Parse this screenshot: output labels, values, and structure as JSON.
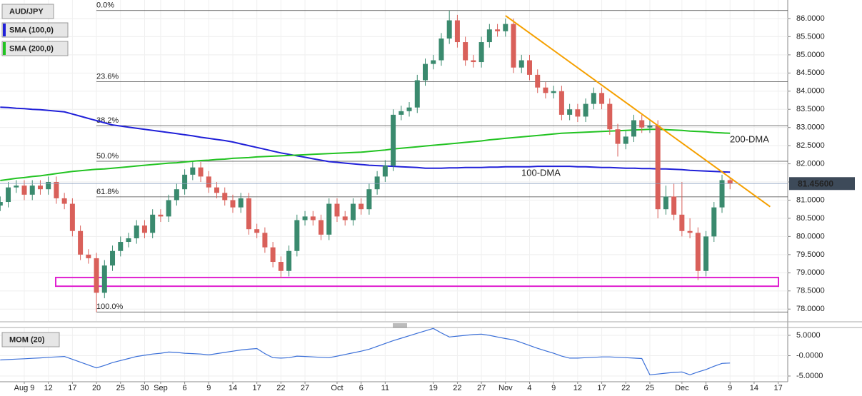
{
  "chart_data": [
    {
      "type": "candlestick",
      "title": "AUD/JPY",
      "categories": [
        null,
        null,
        null,
        "Aug 9",
        null,
        null,
        "12",
        null,
        null,
        "17",
        null,
        null,
        "20",
        null,
        null,
        "25",
        null,
        null,
        "30",
        null,
        "Sep",
        null,
        null,
        "6",
        null,
        null,
        "9",
        null,
        null,
        "14",
        null,
        null,
        "17",
        null,
        null,
        "22",
        null,
        null,
        "27",
        null,
        null,
        null,
        "Oct",
        null,
        null,
        "6",
        null,
        null,
        "11",
        null,
        null,
        null,
        null,
        null,
        "19",
        null,
        null,
        "22",
        null,
        null,
        "27",
        null,
        null,
        "Nov",
        null,
        null,
        "4",
        null,
        null,
        "9",
        null,
        null,
        "12",
        null,
        null,
        "17",
        null,
        null,
        "22",
        null,
        null,
        "25",
        null,
        null,
        null,
        "Dec",
        null,
        null,
        "6",
        null,
        null,
        "9",
        null,
        null,
        "14",
        null,
        null,
        "17"
      ],
      "candles": {
        "name": "AUD/JPY",
        "up_color": "#3a8a6e",
        "down_color": "#d9605a",
        "open": [
          80.85,
          80.95,
          81.35,
          81.4,
          81.15,
          81.4,
          81.3,
          81.5,
          81.05,
          80.9,
          80.15,
          79.5,
          79.4,
          78.45,
          79.2,
          79.6,
          79.85,
          79.95,
          80.3,
          80.1,
          80.6,
          80.55,
          81.0,
          81.3,
          81.7,
          81.9,
          81.65,
          81.35,
          81.2,
          81.0,
          80.8,
          81.05,
          80.2,
          80.1,
          79.7,
          79.3,
          79.05,
          79.6,
          80.45,
          80.55,
          80.45,
          80.05,
          80.9,
          80.55,
          80.45,
          80.9,
          80.75,
          81.3,
          81.65,
          81.95,
          83.35,
          83.45,
          83.55,
          84.3,
          84.75,
          84.85,
          85.45,
          85.95,
          85.35,
          84.85,
          84.8,
          85.35,
          85.7,
          85.65,
          85.85,
          84.65,
          84.85,
          84.45,
          84.1,
          83.95,
          84.0,
          83.35,
          83.5,
          83.3,
          83.65,
          83.95,
          83.65,
          82.95,
          82.55,
          82.75,
          83.2,
          83.0,
          83.05,
          80.75,
          81.1,
          80.6,
          80.15,
          80.1,
          79.05,
          80.0,
          80.8,
          81.55,
          null,
          null,
          null,
          null,
          null,
          null
        ],
        "high": [
          81.1,
          81.5,
          81.55,
          81.55,
          81.55,
          81.55,
          81.65,
          81.65,
          81.2,
          81.05,
          80.3,
          79.65,
          79.55,
          79.35,
          79.75,
          80.0,
          80.1,
          80.45,
          80.45,
          80.75,
          80.75,
          81.15,
          81.45,
          81.85,
          82.05,
          82.05,
          81.8,
          81.5,
          81.35,
          81.15,
          81.2,
          81.2,
          80.35,
          80.25,
          79.85,
          79.45,
          79.75,
          80.6,
          80.7,
          80.7,
          80.6,
          81.05,
          81.05,
          80.7,
          81.05,
          81.05,
          81.45,
          81.8,
          82.1,
          83.5,
          83.6,
          83.7,
          84.45,
          84.9,
          85.0,
          85.6,
          86.22,
          86.1,
          85.5,
          85.0,
          85.5,
          85.85,
          85.85,
          86.0,
          86.0,
          85.0,
          85.0,
          84.6,
          84.25,
          84.15,
          84.15,
          83.65,
          83.65,
          83.8,
          84.1,
          84.1,
          83.8,
          83.1,
          82.9,
          83.35,
          83.35,
          83.2,
          83.2,
          81.4,
          81.45,
          81.5,
          80.5,
          80.25,
          80.15,
          80.95,
          81.7,
          81.6,
          null,
          null,
          null,
          null,
          null,
          null
        ],
        "low": [
          80.7,
          80.8,
          81.2,
          81.0,
          81.0,
          81.15,
          81.15,
          80.9,
          80.75,
          80.0,
          79.35,
          79.25,
          77.92,
          78.3,
          79.05,
          79.45,
          79.7,
          79.8,
          79.95,
          79.95,
          80.4,
          80.4,
          80.85,
          81.15,
          81.55,
          81.5,
          81.2,
          81.05,
          80.85,
          80.65,
          80.65,
          80.05,
          79.95,
          79.55,
          79.15,
          78.85,
          78.9,
          79.45,
          80.3,
          80.3,
          79.9,
          79.9,
          80.4,
          80.3,
          80.3,
          80.6,
          80.6,
          81.15,
          81.5,
          81.8,
          83.2,
          83.3,
          83.4,
          84.15,
          84.6,
          84.7,
          85.3,
          85.2,
          84.7,
          84.65,
          84.65,
          85.2,
          85.5,
          85.5,
          84.5,
          84.5,
          84.3,
          83.95,
          83.8,
          83.8,
          83.2,
          83.2,
          83.15,
          83.15,
          83.5,
          83.5,
          82.8,
          82.2,
          82.4,
          82.6,
          82.85,
          82.85,
          80.5,
          80.6,
          80.45,
          80.0,
          79.95,
          78.8,
          78.9,
          79.85,
          80.65,
          81.3,
          null,
          null,
          null,
          null,
          null,
          null
        ],
        "close": [
          80.95,
          81.35,
          81.4,
          81.15,
          81.4,
          81.3,
          81.5,
          81.05,
          80.9,
          80.15,
          79.5,
          79.4,
          78.45,
          79.2,
          79.6,
          79.85,
          79.95,
          80.3,
          80.1,
          80.6,
          80.55,
          81.0,
          81.3,
          81.7,
          81.9,
          81.65,
          81.35,
          81.2,
          81.0,
          80.8,
          81.05,
          80.2,
          80.1,
          79.7,
          79.3,
          79.05,
          79.6,
          80.45,
          80.55,
          80.45,
          80.05,
          80.9,
          80.55,
          80.45,
          80.9,
          80.75,
          81.3,
          81.65,
          81.95,
          83.35,
          83.45,
          83.55,
          84.3,
          84.75,
          84.85,
          85.45,
          85.95,
          85.35,
          84.85,
          84.8,
          85.35,
          85.7,
          85.65,
          85.85,
          84.65,
          84.85,
          84.45,
          84.1,
          83.95,
          84.0,
          83.35,
          83.5,
          83.3,
          83.65,
          83.95,
          83.65,
          82.95,
          82.55,
          82.75,
          83.2,
          83.0,
          83.05,
          80.75,
          81.1,
          80.6,
          80.15,
          80.1,
          79.05,
          80.0,
          80.8,
          81.55,
          81.45,
          null,
          null,
          null,
          null,
          null,
          null
        ]
      },
      "series": [
        {
          "name": "SMA (100,0)",
          "label": "100-DMA",
          "color": "#2020d8",
          "values": [
            83.56,
            83.55,
            83.53,
            83.52,
            83.5,
            83.49,
            83.47,
            83.45,
            83.43,
            83.37,
            83.31,
            83.25,
            83.19,
            83.13,
            83.07,
            83.04,
            83.01,
            82.98,
            82.95,
            82.92,
            82.89,
            82.86,
            82.83,
            82.8,
            82.77,
            82.73,
            82.7,
            82.67,
            82.64,
            82.6,
            82.55,
            82.5,
            82.45,
            82.4,
            82.35,
            82.3,
            82.26,
            82.22,
            82.18,
            82.14,
            82.1,
            82.06,
            82.04,
            82.02,
            82.0,
            81.98,
            81.96,
            81.95,
            81.94,
            81.93,
            81.92,
            81.91,
            81.9,
            81.88,
            81.88,
            81.88,
            81.89,
            81.89,
            81.9,
            81.9,
            81.9,
            81.91,
            81.91,
            81.92,
            81.92,
            81.92,
            81.92,
            81.93,
            81.93,
            81.93,
            81.93,
            81.93,
            81.92,
            81.92,
            81.91,
            81.9,
            81.9,
            81.89,
            81.88,
            81.88,
            81.87,
            81.87,
            81.86,
            81.86,
            81.85,
            81.84,
            81.82,
            81.81,
            81.8,
            81.79,
            81.78,
            81.77,
            null,
            null,
            null,
            null,
            null,
            null
          ]
        },
        {
          "name": "SMA (200,0)",
          "label": "200-DMA",
          "color": "#22c322",
          "values": [
            81.54,
            81.57,
            81.6,
            81.62,
            81.65,
            81.67,
            81.7,
            81.73,
            81.76,
            81.79,
            81.81,
            81.83,
            81.85,
            81.86,
            81.88,
            81.9,
            81.92,
            81.94,
            81.96,
            81.98,
            82.0,
            82.02,
            82.03,
            82.05,
            82.07,
            82.09,
            82.1,
            82.12,
            82.13,
            82.15,
            82.16,
            82.17,
            82.19,
            82.2,
            82.21,
            82.22,
            82.23,
            82.24,
            82.25,
            82.26,
            82.27,
            82.28,
            82.29,
            82.3,
            82.31,
            82.32,
            82.34,
            82.36,
            82.38,
            82.41,
            82.43,
            82.45,
            82.47,
            82.49,
            82.51,
            82.53,
            82.55,
            82.57,
            82.59,
            82.61,
            82.63,
            82.66,
            82.68,
            82.7,
            82.72,
            82.74,
            82.76,
            82.78,
            82.8,
            82.82,
            82.84,
            82.85,
            82.86,
            82.87,
            82.88,
            82.89,
            82.9,
            82.91,
            82.92,
            82.93,
            82.94,
            82.95,
            82.95,
            82.94,
            82.93,
            82.92,
            82.9,
            82.89,
            82.88,
            82.86,
            82.85,
            82.84,
            null,
            null,
            null,
            null,
            null,
            null
          ]
        }
      ],
      "fibonacci": [
        {
          "label": "0.0%",
          "value": 86.22
        },
        {
          "label": "23.6%",
          "value": 84.26
        },
        {
          "label": "38.2%",
          "value": 83.05
        },
        {
          "label": "50.0%",
          "value": 82.07
        },
        {
          "label": "61.8%",
          "value": 81.09
        },
        {
          "label": "100.0%",
          "value": 77.92
        }
      ],
      "trendline": {
        "color": "#f5a000",
        "start": {
          "index": 63,
          "value": 86.08
        },
        "end": {
          "index": 96,
          "value": 80.82
        }
      },
      "zone": {
        "color": "#e020d0",
        "low": 78.63,
        "high": 78.87
      },
      "last_price": {
        "value": 81.456,
        "label": "81.45600"
      },
      "ylim": [
        77.67,
        86.51
      ],
      "yticks": [
        {
          "value": 78,
          "label": "78.0000"
        },
        {
          "value": 78.5,
          "label": "78.5000"
        },
        {
          "value": 79,
          "label": "79.0000"
        },
        {
          "value": 79.5,
          "label": "79.5000"
        },
        {
          "value": 80,
          "label": "80.0000"
        },
        {
          "value": 80.5,
          "label": "80.5000"
        },
        {
          "value": 81,
          "label": "81.0000"
        },
        {
          "value": 81.5,
          "label": "81.5000"
        },
        {
          "value": 82,
          "label": "82.0000"
        },
        {
          "value": 82.5,
          "label": "82.5000"
        },
        {
          "value": 83,
          "label": "83.0000"
        },
        {
          "value": 83.5,
          "label": "83.5000"
        },
        {
          "value": 84,
          "label": "84.0000"
        },
        {
          "value": 84.5,
          "label": "84.5000"
        },
        {
          "value": 85,
          "label": "85.0000"
        },
        {
          "value": 85.5,
          "label": "85.5000"
        },
        {
          "value": 86,
          "label": "86.0000"
        }
      ],
      "grid": true
    },
    {
      "type": "line",
      "series": [
        {
          "name": "MOM (20)",
          "color": "#3a6fd8",
          "values": [
            -1.05,
            -0.95,
            -0.85,
            -0.75,
            -0.65,
            -0.55,
            -0.4,
            -0.3,
            -0.2,
            -0.9,
            -1.6,
            -2.3,
            -3.0,
            -2.4,
            -1.7,
            -1.2,
            -0.7,
            -0.2,
            0.1,
            0.4,
            0.6,
            0.9,
            0.8,
            0.6,
            0.5,
            0.4,
            0.2,
            0.5,
            0.8,
            1.1,
            1.4,
            1.6,
            1.75,
            0.5,
            -0.5,
            -0.6,
            -0.5,
            -0.1,
            -0.2,
            -0.3,
            -0.4,
            -0.5,
            -0.1,
            0.3,
            0.7,
            1.1,
            1.6,
            2.3,
            3.0,
            3.7,
            4.3,
            4.9,
            5.5,
            6.1,
            6.7,
            5.6,
            4.6,
            4.8,
            5.0,
            5.2,
            5.3,
            5.0,
            4.6,
            4.2,
            3.9,
            3.2,
            2.5,
            1.8,
            1.2,
            0.6,
            -0.1,
            -0.6,
            -0.6,
            -0.5,
            -0.4,
            -0.3,
            -0.3,
            -0.4,
            -0.5,
            -0.6,
            -0.7,
            -4.7,
            -4.5,
            -4.3,
            -4.1,
            -4.0,
            -4.7,
            -4.0,
            -3.4,
            -2.6,
            -1.9,
            -1.8,
            null,
            null,
            null,
            null,
            null,
            null
          ]
        }
      ],
      "ylim": [
        -6.05,
        6.75
      ],
      "yticks": [
        {
          "value": 5,
          "label": "5.0000"
        },
        {
          "value": 0,
          "label": "-0.0000"
        },
        {
          "value": -5,
          "label": "-5.0000"
        }
      ],
      "grid": true
    }
  ]
}
